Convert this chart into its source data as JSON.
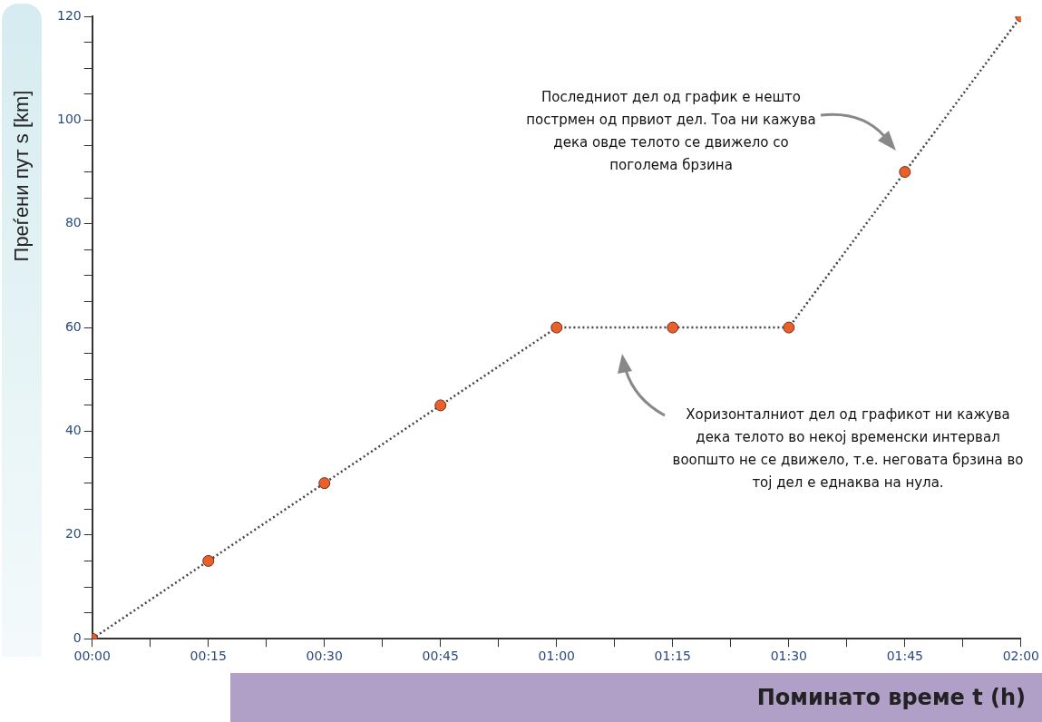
{
  "chart_data": {
    "type": "line",
    "xlabel": "Поминато време t (h)",
    "ylabel": "Преѓени пут s [km]",
    "x": [
      0,
      0.25,
      0.5,
      0.75,
      1,
      1.25,
      1.5,
      1.75,
      2
    ],
    "series": [
      {
        "color": "#e8602c",
        "values": [
          0,
          15,
          30,
          45,
          60,
          60,
          60,
          90,
          120
        ]
      }
    ],
    "xlim": [
      0,
      2
    ],
    "xticks": [
      {
        "value": 0,
        "label": "00:00"
      },
      {
        "value": 0.125,
        "label": null
      },
      {
        "value": 0.25,
        "label": "00:15"
      },
      {
        "value": 0.375,
        "label": null
      },
      {
        "value": 0.5,
        "label": "00:30"
      },
      {
        "value": 0.625,
        "label": null
      },
      {
        "value": 0.75,
        "label": "00:45"
      },
      {
        "value": 0.875,
        "label": null
      },
      {
        "value": 1,
        "label": "01:00"
      },
      {
        "value": 1.125,
        "label": null
      },
      {
        "value": 1.25,
        "label": "01:15"
      },
      {
        "value": 1.375,
        "label": null
      },
      {
        "value": 1.5,
        "label": "01:30"
      },
      {
        "value": 1.625,
        "label": null
      },
      {
        "value": 1.75,
        "label": "01:45"
      },
      {
        "value": 1.875,
        "label": null
      },
      {
        "value": 2,
        "label": "02:00"
      }
    ],
    "ylim": [
      0,
      120
    ],
    "yticks": [
      0,
      {
        "value": 5,
        "label": null
      },
      {
        "value": 10,
        "label": null
      },
      {
        "value": 15,
        "label": null
      },
      20,
      {
        "value": 25,
        "label": null
      },
      {
        "value": 30,
        "label": null
      },
      {
        "value": 35,
        "label": null
      },
      40,
      {
        "value": 45,
        "label": null
      },
      {
        "value": 50,
        "label": null
      },
      {
        "value": 55,
        "label": null
      },
      60,
      {
        "value": 65,
        "label": null
      },
      {
        "value": 70,
        "label": null
      },
      {
        "value": 75,
        "label": null
      },
      80,
      {
        "value": 85,
        "label": null
      },
      {
        "value": 90,
        "label": null
      },
      {
        "value": 95,
        "label": null
      },
      100,
      {
        "value": 105,
        "label": null
      },
      {
        "value": 110,
        "label": null
      },
      {
        "value": 115,
        "label": null
      },
      120
    ],
    "grid": false,
    "legend": false,
    "marker": "circle",
    "line_style": "dotted",
    "annotations": [
      "Последниот дел од график е нешто пострмен од првиот дел. Тоа ни кажува дека овде телото се движело со поголема брзина",
      "Хоризонталниот дел од графикот ни кажува дека телото во некој временски интервал воопшто не се движело, т.е. неговата брзина во тој дел е еднаква на нула."
    ]
  }
}
